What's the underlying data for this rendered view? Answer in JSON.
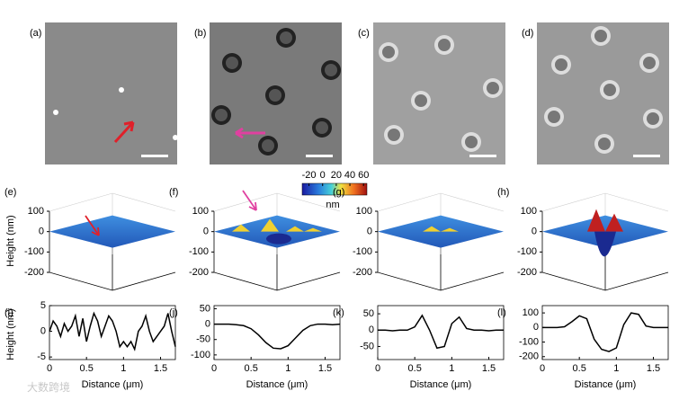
{
  "panels": [
    {
      "label": "(a)"
    },
    {
      "label": "(b)"
    },
    {
      "label": "(c)"
    },
    {
      "label": "(d)"
    }
  ],
  "colorbar": {
    "ticks": [
      -20,
      0,
      20,
      40,
      60
    ],
    "lim": [
      -30,
      65
    ],
    "unit": "nm"
  },
  "surface_axis_label": "Height (nm)",
  "surface_plots": [
    {
      "label": "(e)",
      "zlim": [
        -200,
        100
      ],
      "zticks": [
        100,
        0,
        -100,
        -200
      ]
    },
    {
      "label": "(f)",
      "zlim": [
        -200,
        100
      ],
      "zticks": [
        100,
        0,
        -100,
        -200
      ]
    },
    {
      "label": "(g)",
      "zlim": [
        -200,
        100
      ],
      "zticks": [
        100,
        0,
        -100,
        -200
      ]
    },
    {
      "label": "(h)",
      "zlim": [
        -200,
        100
      ],
      "zticks": [
        100,
        0,
        -100,
        -200
      ]
    }
  ],
  "watermark": "大数跨境",
  "chart_data": [
    {
      "type": "line",
      "label": "(i)",
      "x_label": "Distance (μm)",
      "y_label": "Height (nm)",
      "xlim": [
        0,
        1.7
      ],
      "xticks": [
        0,
        0.5,
        1,
        1.5
      ],
      "ylim": [
        -5.5,
        5
      ],
      "yticks": [
        -5,
        0,
        5
      ],
      "color": "#000000",
      "x": [
        0,
        0.05,
        0.1,
        0.15,
        0.2,
        0.25,
        0.3,
        0.35,
        0.4,
        0.45,
        0.5,
        0.55,
        0.6,
        0.65,
        0.7,
        0.75,
        0.8,
        0.85,
        0.9,
        0.95,
        1,
        1.05,
        1.1,
        1.15,
        1.2,
        1.25,
        1.3,
        1.35,
        1.4,
        1.45,
        1.5,
        1.55,
        1.6,
        1.65,
        1.7
      ],
      "values": [
        0,
        2,
        1,
        -1,
        1.5,
        0,
        1,
        3,
        -1,
        2.5,
        -2,
        1,
        3.5,
        2,
        -1,
        1,
        3,
        2,
        0,
        -3,
        -2,
        -3,
        -2,
        -3.5,
        0,
        1,
        3,
        0,
        -2,
        -1,
        0,
        1,
        3.5,
        0,
        -3
      ]
    },
    {
      "type": "line",
      "label": "(j)",
      "x_label": "Distance (μm)",
      "xlim": [
        0,
        1.7
      ],
      "xticks": [
        0,
        0.5,
        1,
        1.5
      ],
      "ylim": [
        -115,
        60
      ],
      "yticks": [
        -100,
        -50,
        0,
        50
      ],
      "color": "#000000",
      "x": [
        0,
        0.1,
        0.2,
        0.3,
        0.4,
        0.5,
        0.6,
        0.7,
        0.8,
        0.9,
        1,
        1.1,
        1.2,
        1.3,
        1.4,
        1.5,
        1.6,
        1.7
      ],
      "values": [
        0,
        0,
        0,
        -2,
        -5,
        -15,
        -35,
        -60,
        -78,
        -80,
        -70,
        -45,
        -20,
        -5,
        0,
        0,
        -2,
        0
      ]
    },
    {
      "type": "line",
      "label": "(k)",
      "x_label": "Distance (μm)",
      "xlim": [
        0,
        1.7
      ],
      "xticks": [
        0,
        0.5,
        1,
        1.5
      ],
      "ylim": [
        -90,
        75
      ],
      "yticks": [
        -50,
        0,
        50
      ],
      "color": "#000000",
      "x": [
        0,
        0.1,
        0.2,
        0.3,
        0.4,
        0.5,
        0.6,
        0.7,
        0.8,
        0.9,
        1,
        1.1,
        1.2,
        1.3,
        1.4,
        1.5,
        1.6,
        1.7
      ],
      "values": [
        0,
        0,
        -2,
        0,
        0,
        10,
        45,
        0,
        -55,
        -50,
        20,
        40,
        5,
        0,
        0,
        -2,
        0,
        0
      ]
    },
    {
      "type": "line",
      "label": "(l)",
      "x_label": "Distance (μm)",
      "xlim": [
        0,
        1.7
      ],
      "xticks": [
        0,
        0.5,
        1,
        1.5
      ],
      "ylim": [
        -220,
        150
      ],
      "yticks": [
        -200,
        -100,
        0,
        100
      ],
      "color": "#000000",
      "x": [
        0,
        0.1,
        0.2,
        0.3,
        0.4,
        0.5,
        0.6,
        0.7,
        0.8,
        0.9,
        1,
        1.1,
        1.2,
        1.3,
        1.4,
        1.5,
        1.6,
        1.7
      ],
      "values": [
        0,
        0,
        0,
        5,
        40,
        80,
        60,
        -80,
        -150,
        -165,
        -140,
        20,
        100,
        90,
        10,
        0,
        0,
        0
      ]
    }
  ]
}
